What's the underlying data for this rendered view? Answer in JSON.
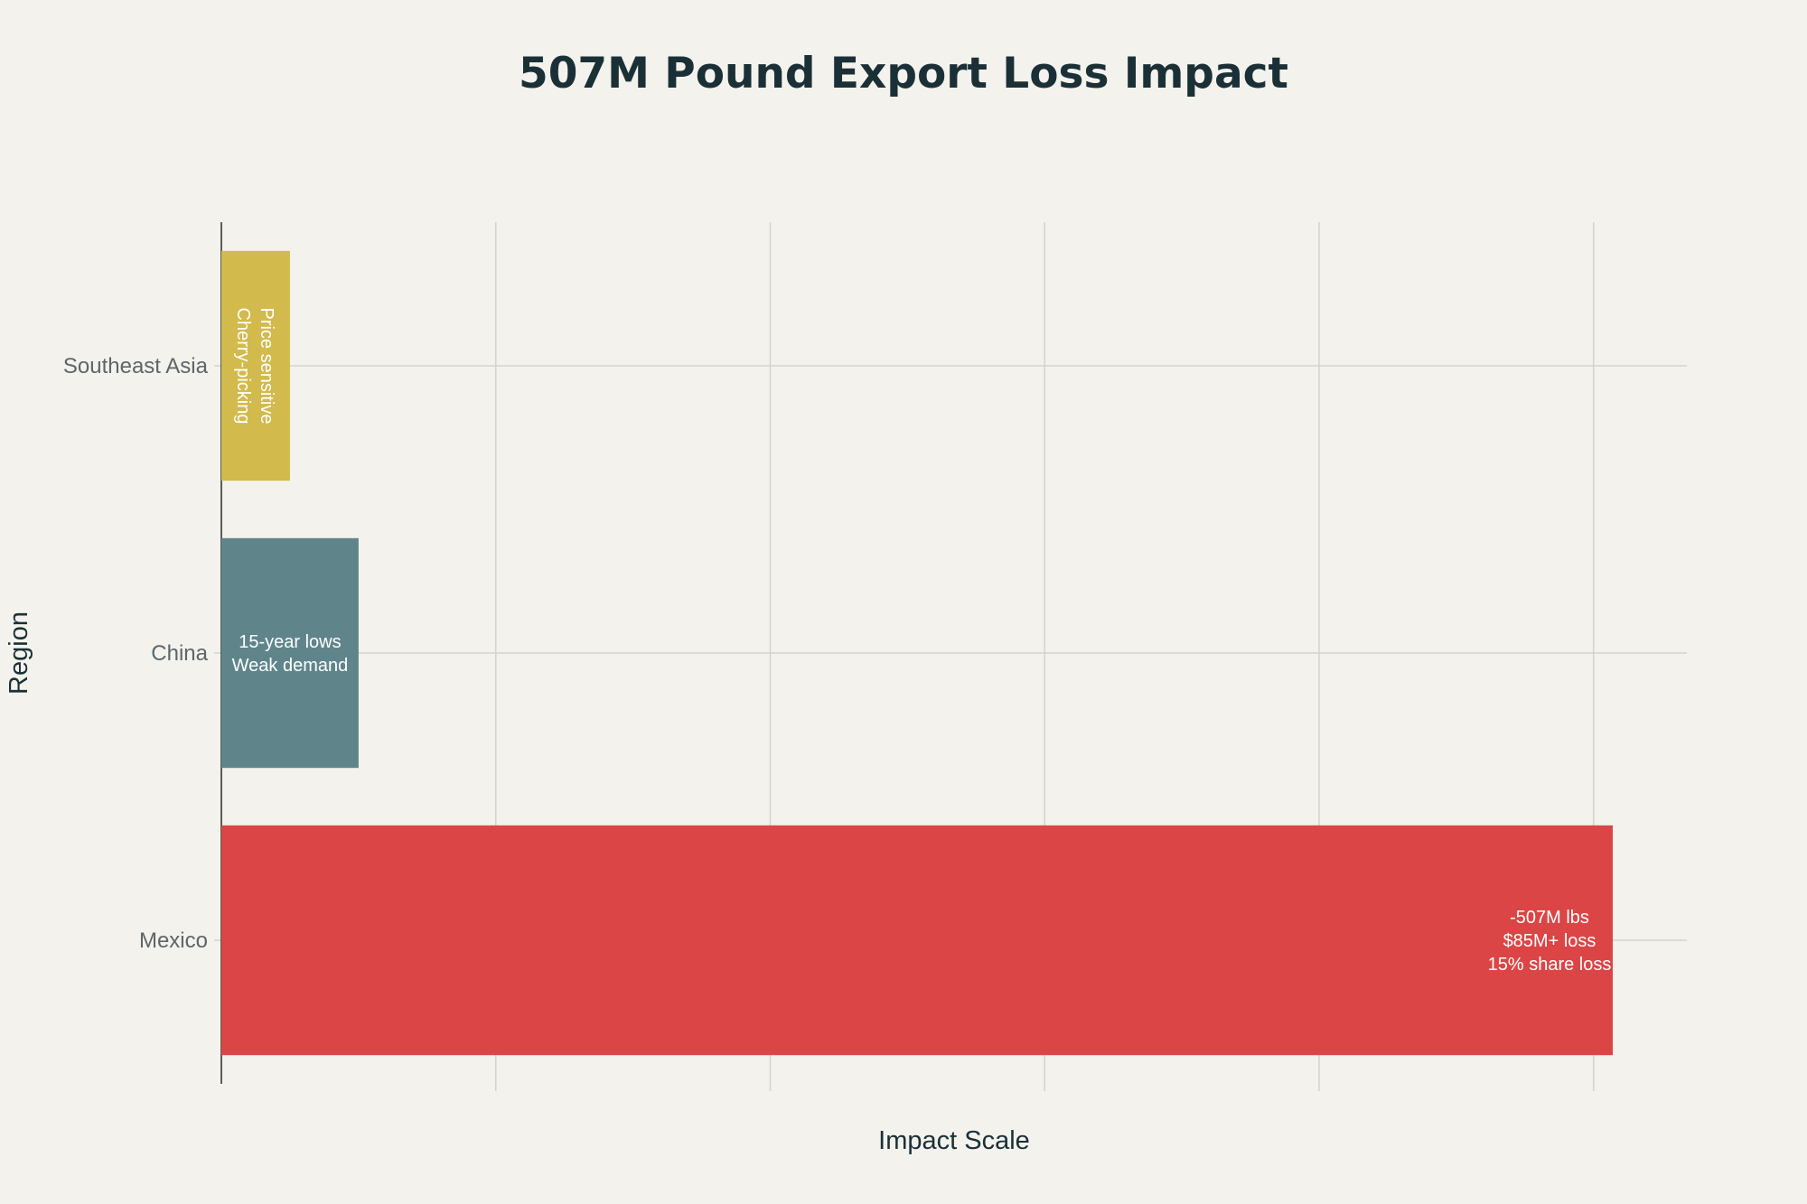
{
  "chart_data": {
    "type": "bar",
    "orientation": "horizontal",
    "title": "507M Pound Export Loss Impact",
    "xlabel": "Impact Scale",
    "ylabel": "Region",
    "categories": [
      "Mexico",
      "China",
      "Southeast Asia"
    ],
    "values": [
      507,
      50,
      25
    ],
    "xlim": [
      0,
      534
    ],
    "x_tick_values": [
      0,
      100,
      200,
      300,
      400,
      500
    ],
    "x_tick_labels_visible": false,
    "grid": true,
    "bar_labels": [
      [
        "-507M lbs",
        "$85M+ loss",
        "15% share loss"
      ],
      [
        "15-year lows",
        "Weak demand"
      ],
      [
        "Price sensitive",
        "Cherry-picking"
      ]
    ],
    "bar_label_orientation": [
      "horizontal",
      "horizontal",
      "vertical"
    ],
    "colors": [
      "#db4545",
      "#5f858b",
      "#d2ba4c"
    ]
  }
}
